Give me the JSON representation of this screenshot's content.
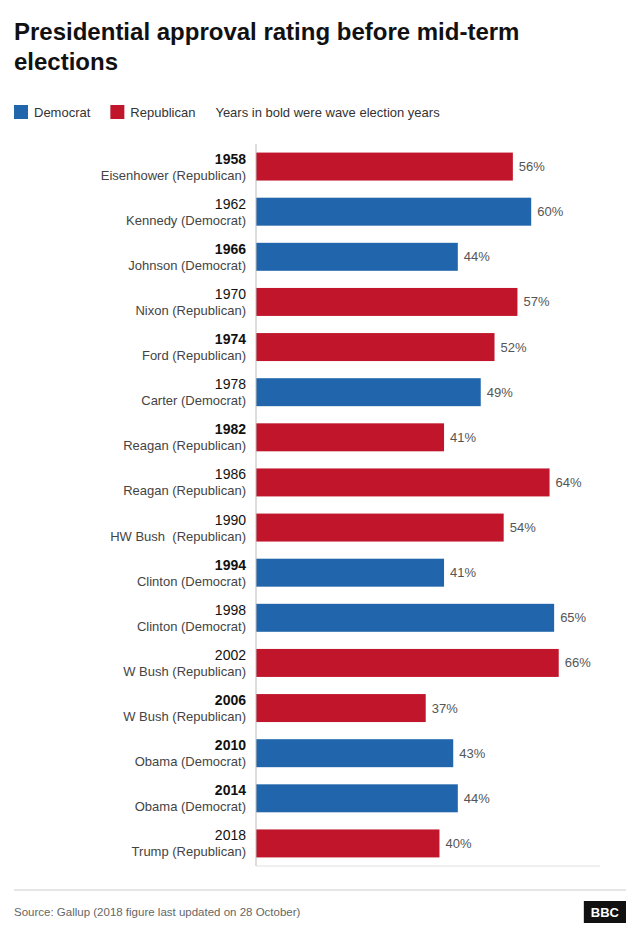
{
  "chart_data": {
    "type": "bar",
    "orientation": "horizontal",
    "title": "Presidential approval rating before mid-term elections",
    "categories": [
      "1958",
      "1962",
      "1966",
      "1970",
      "1974",
      "1978",
      "1982",
      "1986",
      "1990",
      "1994",
      "1998",
      "2002",
      "2006",
      "2010",
      "2014",
      "2018"
    ],
    "sublabels": [
      "Eisenhower (Republican)",
      "Kennedy (Democrat)",
      "Johnson (Democrat)",
      "Nixon (Republican)",
      "Ford (Republican)",
      "Carter (Democrat)",
      "Reagan (Republican)",
      "Reagan (Republican)",
      "HW Bush  (Republican)",
      "Clinton (Democrat)",
      "Clinton (Democrat)",
      "W Bush (Republican)",
      "W Bush (Republican)",
      "Obama (Democrat)",
      "Obama (Democrat)",
      "Trump (Republican)"
    ],
    "wave": [
      true,
      false,
      true,
      false,
      true,
      false,
      true,
      false,
      false,
      true,
      false,
      false,
      true,
      true,
      true,
      false
    ],
    "series": [
      {
        "values": [
          56,
          60,
          44,
          57,
          52,
          49,
          41,
          64,
          54,
          41,
          65,
          66,
          37,
          43,
          44,
          40
        ],
        "value_labels": [
          "56%",
          "60%",
          "44%",
          "57%",
          "52%",
          "49%",
          "41%",
          "64%",
          "54%",
          "41%",
          "65%",
          "66%",
          "37%",
          "43%",
          "44%",
          "40%"
        ],
        "colors": [
          "#c0152a",
          "#2166ac",
          "#2166ac",
          "#c0152a",
          "#c0152a",
          "#2166ac",
          "#c0152a",
          "#c0152a",
          "#c0152a",
          "#2166ac",
          "#2166ac",
          "#c0152a",
          "#c0152a",
          "#2166ac",
          "#2166ac",
          "#c0152a"
        ]
      }
    ],
    "legend_items": [
      {
        "name": "Democrat",
        "color": "#2166ac"
      },
      {
        "name": "Republican",
        "color": "#c0152a"
      }
    ],
    "note": "Years in bold were wave election years",
    "source": "Source: Gallup (2018 figure last updated on 28 October)",
    "logo": "BBC",
    "xlim": [
      0,
      75
    ],
    "data_labels": true,
    "tick_labels": "y",
    "grid": false
  }
}
